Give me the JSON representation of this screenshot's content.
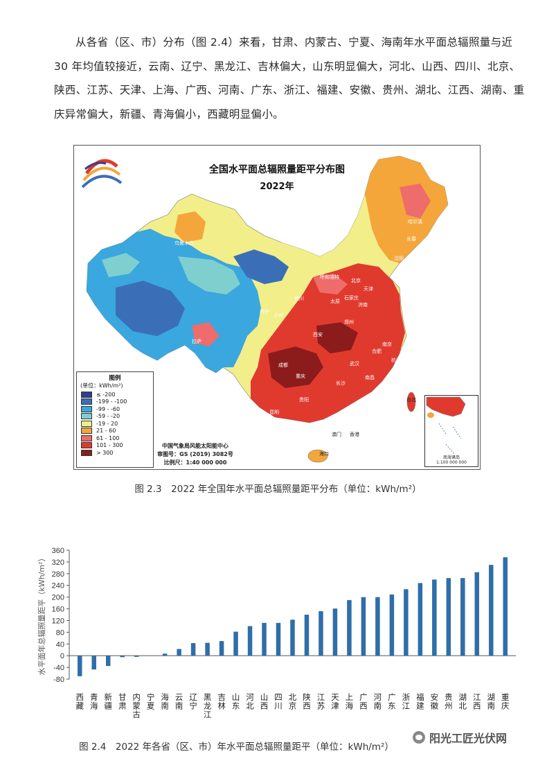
{
  "paragraph": "从各省（区、市）分布（图 2.4）来看，甘肃、内蒙古、宁夏、海南年水平面总辐照量与近 30 年均值较接近，云南、辽宁、黑龙江、吉林偏大，山东明显偏大，河北、山西、四川、北京、陕西、江苏、天津、上海、广西、河南、广东、浙江、福建、安徽、贵州、湖北、江西、湖南、重庆异常偏大，新疆、青海偏小，西藏明显偏小。",
  "map": {
    "title": "全国水平面总辐照量距平分布图",
    "subtitle": "2022年",
    "legend_title": "图例",
    "legend_unit": "(单位：kWh/m²)",
    "legend": [
      {
        "label": "≤ -200",
        "color": "#2e3f8f"
      },
      {
        "label": "-199 - -100",
        "color": "#3a6fb8"
      },
      {
        "label": "-99 - -60",
        "color": "#3aa7df"
      },
      {
        "label": "-59 - -20",
        "color": "#7fcfcf"
      },
      {
        "label": "-19 - 20",
        "color": "#f2ee8a"
      },
      {
        "label": "21 - 60",
        "color": "#f4a63a"
      },
      {
        "label": "61 - 100",
        "color": "#ee6c6c"
      },
      {
        "label": "101 - 300",
        "color": "#e03a2e"
      },
      {
        "label": "> 300",
        "color": "#8c1c1c"
      }
    ],
    "credit_org": "中国气象局风能太阳能中心",
    "credit_approval": "审图号：GS (2019) 3082号",
    "credit_scale": "比例尺：1:40 000 000",
    "inset_caption": "南海诸岛\n1:100 000 000",
    "cities": [
      "乌鲁木齐",
      "哈尔滨",
      "长春",
      "沈阳",
      "北京",
      "天津",
      "石家庄",
      "太原",
      "呼和浩特",
      "银川",
      "兰州",
      "西宁",
      "西安",
      "郑州",
      "济南",
      "南京",
      "上海",
      "合肥",
      "武汉",
      "杭州",
      "成都",
      "重庆",
      "长沙",
      "南昌",
      "福州",
      "贵阳",
      "昆明",
      "南宁",
      "广州",
      "台北",
      "拉萨",
      "澳门",
      "香港",
      "海口"
    ]
  },
  "caption1": "图 2.3　2022 年全国年水平面总辐照量距平分布（单位：kWh/m²）",
  "caption2": "图 2.4　2022 年各省（区、市）年水平面总辐照量距平（单位：kWh/m²）",
  "watermark": "阳光工匠光伏网",
  "chart_data": {
    "type": "bar",
    "title": "",
    "xlabel": "",
    "ylabel": "水平面年总辐照量距平（kWh/m²）",
    "ylim": [
      -80,
      360
    ],
    "yticks": [
      -80,
      -40,
      0,
      40,
      80,
      120,
      160,
      200,
      240,
      280,
      320,
      360
    ],
    "ytick_labels": [
      "-80",
      "-40",
      "0",
      "40",
      "80",
      "120",
      "160",
      "200",
      "240",
      "280",
      "320",
      "360"
    ],
    "bar_color": "#2f6ea8",
    "grid": false,
    "categories": [
      "西藏",
      "青海",
      "新疆",
      "甘肃",
      "内蒙古",
      "宁夏",
      "海南",
      "云南",
      "辽宁",
      "黑龙江",
      "吉林",
      "山东",
      "河北",
      "山西",
      "四川",
      "北京",
      "陕西",
      "江苏",
      "天津",
      "上海",
      "广西",
      "河南",
      "广东",
      "浙江",
      "福建",
      "安徽",
      "贵州",
      "湖北",
      "江西",
      "湖南",
      "重庆"
    ],
    "values": [
      -70,
      -47,
      -35,
      -5,
      -4,
      0,
      7,
      23,
      43,
      44,
      50,
      82,
      101,
      112,
      112,
      123,
      140,
      152,
      161,
      190,
      200,
      200,
      209,
      227,
      248,
      260,
      265,
      265,
      285,
      310,
      336
    ]
  }
}
